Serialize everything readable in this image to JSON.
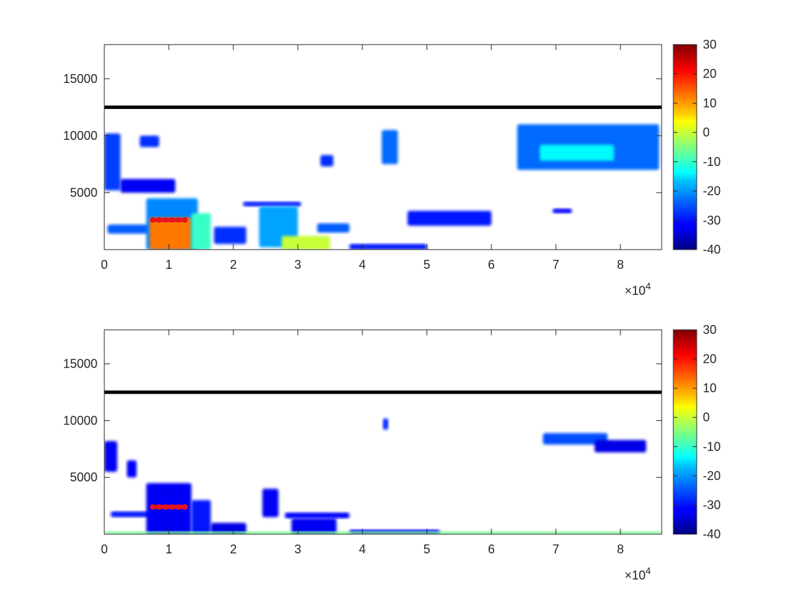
{
  "chart_data": [
    {
      "type": "heatmap",
      "xlim": [
        0,
        86400
      ],
      "ylim": [
        0,
        18000
      ],
      "x_ticks": [
        0,
        10000,
        20000,
        30000,
        40000,
        50000,
        60000,
        70000,
        80000
      ],
      "x_tick_labels": [
        "0",
        "1",
        "2",
        "3",
        "4",
        "5",
        "6",
        "7",
        "8"
      ],
      "x_exponent_label": "×10^4",
      "y_ticks": [
        5000,
        10000,
        15000
      ],
      "y_tick_labels": [
        "5000",
        "10000",
        "15000"
      ],
      "colorbar": {
        "colormap": "jet",
        "clim": [
          -40,
          30
        ],
        "ticks": [
          -40,
          -30,
          -20,
          -10,
          0,
          10,
          20,
          30
        ],
        "tick_labels": [
          "-40",
          "-30",
          "-20",
          "-10",
          "0",
          "10",
          "20",
          "30"
        ]
      },
      "reference_line": {
        "y": 12500,
        "color": "#000000"
      },
      "marker_series": {
        "x": [
          7500,
          8500,
          9500,
          10500,
          11500,
          12500
        ],
        "y": [
          2600,
          2600,
          2600,
          2600,
          2600,
          2600
        ],
        "color": "#e8141c"
      },
      "regions": [
        {
          "x0": 0,
          "x1": 2500,
          "y0": 5200,
          "y1": 10200,
          "value": -27
        },
        {
          "x0": 2500,
          "x1": 11000,
          "y0": 5000,
          "y1": 6200,
          "value": -32
        },
        {
          "x0": 5500,
          "x1": 8500,
          "y0": 9000,
          "y1": 10000,
          "value": -28
        },
        {
          "x0": 500,
          "x1": 8000,
          "y0": 1400,
          "y1": 2200,
          "value": -25
        },
        {
          "x0": 6500,
          "x1": 14500,
          "y0": 0,
          "y1": 4500,
          "value": -22
        },
        {
          "x0": 7000,
          "x1": 13500,
          "y0": 0,
          "y1": 2800,
          "value": 13
        },
        {
          "x0": 13500,
          "x1": 16500,
          "y0": 0,
          "y1": 3200,
          "value": -10
        },
        {
          "x0": 17000,
          "x1": 22000,
          "y0": 500,
          "y1": 2000,
          "value": -28
        },
        {
          "x0": 21500,
          "x1": 30500,
          "y0": 3800,
          "y1": 4200,
          "value": -30
        },
        {
          "x0": 24000,
          "x1": 30000,
          "y0": 200,
          "y1": 3800,
          "value": -20
        },
        {
          "x0": 27500,
          "x1": 35000,
          "y0": 0,
          "y1": 1200,
          "value": 0
        },
        {
          "x0": 33000,
          "x1": 38000,
          "y0": 1500,
          "y1": 2300,
          "value": -25
        },
        {
          "x0": 38000,
          "x1": 50000,
          "y0": 0,
          "y1": 500,
          "value": -30
        },
        {
          "x0": 33500,
          "x1": 35500,
          "y0": 7300,
          "y1": 8300,
          "value": -28
        },
        {
          "x0": 43000,
          "x1": 45500,
          "y0": 7500,
          "y1": 10500,
          "value": -24
        },
        {
          "x0": 64000,
          "x1": 86000,
          "y0": 7000,
          "y1": 11000,
          "value": -24
        },
        {
          "x0": 67500,
          "x1": 79000,
          "y0": 7800,
          "y1": 9200,
          "value": -14
        },
        {
          "x0": 69500,
          "x1": 72500,
          "y0": 3200,
          "y1": 3600,
          "value": -31
        },
        {
          "x0": 47000,
          "x1": 60000,
          "y0": 2100,
          "y1": 3400,
          "value": -30
        }
      ]
    },
    {
      "type": "heatmap",
      "xlim": [
        0,
        86400
      ],
      "ylim": [
        0,
        18000
      ],
      "x_ticks": [
        0,
        10000,
        20000,
        30000,
        40000,
        50000,
        60000,
        70000,
        80000
      ],
      "x_tick_labels": [
        "0",
        "1",
        "2",
        "3",
        "4",
        "5",
        "6",
        "7",
        "8"
      ],
      "x_exponent_label": "×10^4",
      "y_ticks": [
        5000,
        10000,
        15000
      ],
      "y_tick_labels": [
        "5000",
        "10000",
        "15000"
      ],
      "colorbar": {
        "colormap": "jet",
        "clim": [
          -40,
          30
        ],
        "ticks": [
          -40,
          -30,
          -20,
          -10,
          0,
          10,
          20,
          30
        ],
        "tick_labels": [
          "-40",
          "-30",
          "-20",
          "-10",
          "0",
          "10",
          "20",
          "30"
        ]
      },
      "reference_line": {
        "y": 12500,
        "color": "#000000"
      },
      "marker_series": {
        "x": [
          7500,
          8500,
          9500,
          10500,
          11500,
          12500
        ],
        "y": [
          2400,
          2400,
          2400,
          2400,
          2400,
          2400
        ],
        "color": "#e8141c"
      },
      "regions": [
        {
          "x0": 0,
          "x1": 2000,
          "y0": 5500,
          "y1": 8200,
          "value": -32
        },
        {
          "x0": 3500,
          "x1": 5000,
          "y0": 5000,
          "y1": 6500,
          "value": -31
        },
        {
          "x0": 1000,
          "x1": 8500,
          "y0": 1500,
          "y1": 2000,
          "value": -30
        },
        {
          "x0": 6500,
          "x1": 13500,
          "y0": 0,
          "y1": 4500,
          "value": -32
        },
        {
          "x0": 13500,
          "x1": 16500,
          "y0": 0,
          "y1": 3000,
          "value": -30
        },
        {
          "x0": 16500,
          "x1": 22000,
          "y0": 0,
          "y1": 1000,
          "value": -33
        },
        {
          "x0": 24500,
          "x1": 27000,
          "y0": 1500,
          "y1": 4000,
          "value": -32
        },
        {
          "x0": 28000,
          "x1": 38000,
          "y0": 1400,
          "y1": 1900,
          "value": -31
        },
        {
          "x0": 29000,
          "x1": 36000,
          "y0": 0,
          "y1": 1400,
          "value": -32
        },
        {
          "x0": 38000,
          "x1": 52000,
          "y0": 0,
          "y1": 400,
          "value": -31
        },
        {
          "x0": 43200,
          "x1": 44000,
          "y0": 9200,
          "y1": 10200,
          "value": -29
        },
        {
          "x0": 68000,
          "x1": 78000,
          "y0": 7900,
          "y1": 8900,
          "value": -26
        },
        {
          "x0": 76000,
          "x1": 84000,
          "y0": 7200,
          "y1": 8300,
          "value": -33
        },
        {
          "x0": 0,
          "x1": 86400,
          "y0": 0,
          "y1": 250,
          "value": -6
        }
      ]
    }
  ]
}
